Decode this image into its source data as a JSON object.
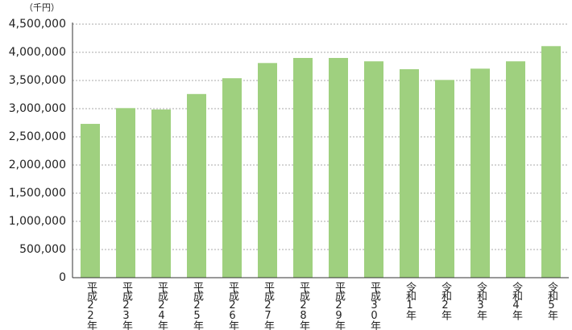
{
  "chart_data": {
    "type": "bar",
    "unit_label": "（千円）",
    "categories": [
      "平成22年",
      "平成23年",
      "平成24年",
      "平成25年",
      "平成26年",
      "平成27年",
      "平成28年",
      "平成29年",
      "平成30年",
      "令和1年",
      "令和2年",
      "令和3年",
      "令和4年",
      "令和5年"
    ],
    "values": [
      2730000,
      3010000,
      2985000,
      3260000,
      3540000,
      3810000,
      3900000,
      3900000,
      3840000,
      3700000,
      3510000,
      3710000,
      3840000,
      4110000
    ],
    "color": "#9fd07f",
    "ylim": [
      0,
      4500000
    ],
    "yticks": [
      0,
      {
        "value": 500000,
        "label": "500,000"
      },
      {
        "value": 1000000,
        "label": "1,000,000"
      },
      {
        "value": 1500000,
        "label": "1,500,000"
      },
      {
        "value": 2000000,
        "label": "2,000,000"
      },
      {
        "value": 2500000,
        "label": "2,500,000"
      },
      {
        "value": 3000000,
        "label": "3,000,000"
      },
      {
        "value": 3500000,
        "label": "3,500,000"
      },
      {
        "value": 4000000,
        "label": "4,000,000"
      },
      {
        "value": 4500000,
        "label": "4,500,000"
      }
    ],
    "grid": true
  }
}
